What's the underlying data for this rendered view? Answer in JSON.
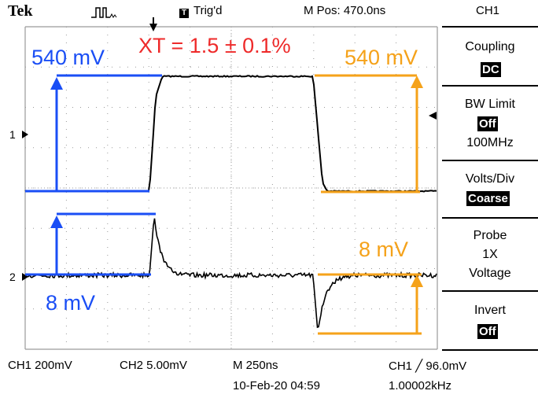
{
  "status_bar": {
    "brand": "Tek",
    "acq_icon": "pulse-acquire-icon",
    "trigger_status": "Trig'd",
    "horiz_position": "M Pos: 470.0ns",
    "menu_title": "CH1"
  },
  "side_menu": {
    "coupling": {
      "label": "Coupling",
      "value": "DC"
    },
    "bw_limit": {
      "label": "BW Limit",
      "value": "Off",
      "extra": "100MHz"
    },
    "volts_div": {
      "label": "Volts/Div",
      "value": "Coarse"
    },
    "probe": {
      "label": "Probe",
      "line2": "1X",
      "line3": "Voltage"
    },
    "invert": {
      "label": "Invert",
      "value": "Off"
    }
  },
  "readouts": {
    "ch1_scale": "CH1  200mV",
    "ch2_scale": "CH2  5.00mV",
    "time_base": "M 250ns",
    "trigger_level": "CH1 ╱ 96.0mV",
    "datetime": "10-Feb-20 04:59",
    "frequency": "1.00002kHz"
  },
  "channel_markers": {
    "ch1": "1",
    "ch2": "2"
  },
  "annotations": {
    "crosstalk": "XT = 1.5 ± 0.1%",
    "ch1_left_amplitude": "540 mV",
    "ch1_right_amplitude": "540 mV",
    "ch2_left_amplitude": "8 mV",
    "ch2_right_amplitude": "8 mV"
  },
  "colors": {
    "trace": "#000000",
    "grid": "#9a9a9a",
    "blue_annotation": "#1a4ef5",
    "orange_annotation": "#f5a21a",
    "red_annotation": "#ee2a2a"
  }
}
